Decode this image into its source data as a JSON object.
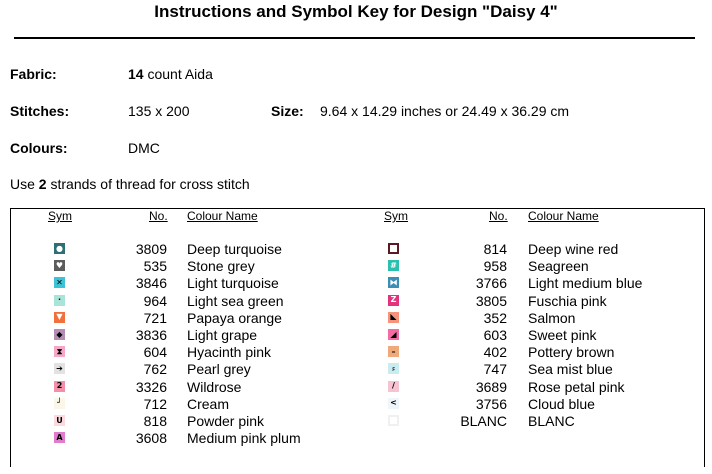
{
  "title": "Instructions and Symbol Key for Design \"Daisy 4\"",
  "fabric": {
    "label": "Fabric:",
    "count_bold": "14",
    "count_rest": " count Aida"
  },
  "stitches": {
    "label": "Stitches:",
    "value": "135 x 200"
  },
  "size": {
    "label": "Size:",
    "value": "9.64 x 14.29 inches or 24.49 x 36.29 cm"
  },
  "colours": {
    "label": "Colours:",
    "value": "DMC"
  },
  "strands": {
    "pre": "Use ",
    "bold": "2",
    "post": " strands of thread for cross stitch"
  },
  "key_headers": {
    "sym": "Sym",
    "no": "No.",
    "name": "Colour Name"
  },
  "left_threads": [
    {
      "no": "3809",
      "name": "Deep turquoise",
      "bg": "#2f6f73",
      "fg": "#ffffff",
      "glyph": "●"
    },
    {
      "no": "535",
      "name": "Stone grey",
      "bg": "#5b5d5a",
      "fg": "#ffffff",
      "glyph": "♥"
    },
    {
      "no": "3846",
      "name": "Light turquoise",
      "bg": "#3ec3d6",
      "fg": "#000000",
      "glyph": "✕"
    },
    {
      "no": "964",
      "name": "Light sea green",
      "bg": "#a9e4d9",
      "fg": "#000000",
      "glyph": "·"
    },
    {
      "no": "721",
      "name": "Papaya orange",
      "bg": "#f2703b",
      "fg": "#ffffff",
      "glyph": "▼"
    },
    {
      "no": "3836",
      "name": "Light grape",
      "bg": "#b48cb6",
      "fg": "#000000",
      "glyph": "◆"
    },
    {
      "no": "604",
      "name": "Hyacinth pink",
      "bg": "#f6a6c6",
      "fg": "#000000",
      "glyph": "⧗"
    },
    {
      "no": "762",
      "name": "Pearl grey",
      "bg": "#e2e2e2",
      "fg": "#000000",
      "glyph": "➔"
    },
    {
      "no": "3326",
      "name": "Wildrose",
      "bg": "#f38fa8",
      "fg": "#000000",
      "glyph": "2"
    },
    {
      "no": "712",
      "name": "Cream",
      "bg": "#fbf7e8",
      "fg": "#000000",
      "glyph": "┘"
    },
    {
      "no": "818",
      "name": "Powder pink",
      "bg": "#fbd9df",
      "fg": "#000000",
      "glyph": "U"
    },
    {
      "no": "3608",
      "name": "Medium pink plum",
      "bg": "#e07ccb",
      "fg": "#000000",
      "glyph": "A"
    }
  ],
  "right_threads": [
    {
      "no": "814",
      "name": "Deep wine red",
      "bg": "#ffffff",
      "fg": "#5a1a24",
      "glyph": "",
      "border": "#5a1a24"
    },
    {
      "no": "958",
      "name": "Seagreen",
      "bg": "#2bbfae",
      "fg": "#ffffff",
      "glyph": "#"
    },
    {
      "no": "3766",
      "name": "Light medium blue",
      "bg": "#3b8fb4",
      "fg": "#ffffff",
      "glyph": "⧓"
    },
    {
      "no": "3805",
      "name": "Fuschia pink",
      "bg": "#e2347d",
      "fg": "#ffffff",
      "glyph": "Z"
    },
    {
      "no": "352",
      "name": "Salmon",
      "bg": "#f7937a",
      "fg": "#000000",
      "glyph": "◣"
    },
    {
      "no": "603",
      "name": "Sweet pink",
      "bg": "#f46aa2",
      "fg": "#000000",
      "glyph": "◢"
    },
    {
      "no": "402",
      "name": "Pottery brown",
      "bg": "#f0a97a",
      "fg": "#000000",
      "glyph": "–"
    },
    {
      "no": "747",
      "name": "Sea mist blue",
      "bg": "#c9ecf0",
      "fg": "#000000",
      "glyph": "⸗"
    },
    {
      "no": "3689",
      "name": "Rose petal pink",
      "bg": "#f7c2d2",
      "fg": "#000000",
      "glyph": "/"
    },
    {
      "no": "3756",
      "name": "Cloud blue",
      "bg": "#eef6fb",
      "fg": "#000000",
      "glyph": "<"
    },
    {
      "no": "BLANC",
      "name": "BLANC",
      "bg": "#ffffff",
      "fg": "#000000",
      "glyph": "",
      "border": "#f0f0f0"
    }
  ]
}
